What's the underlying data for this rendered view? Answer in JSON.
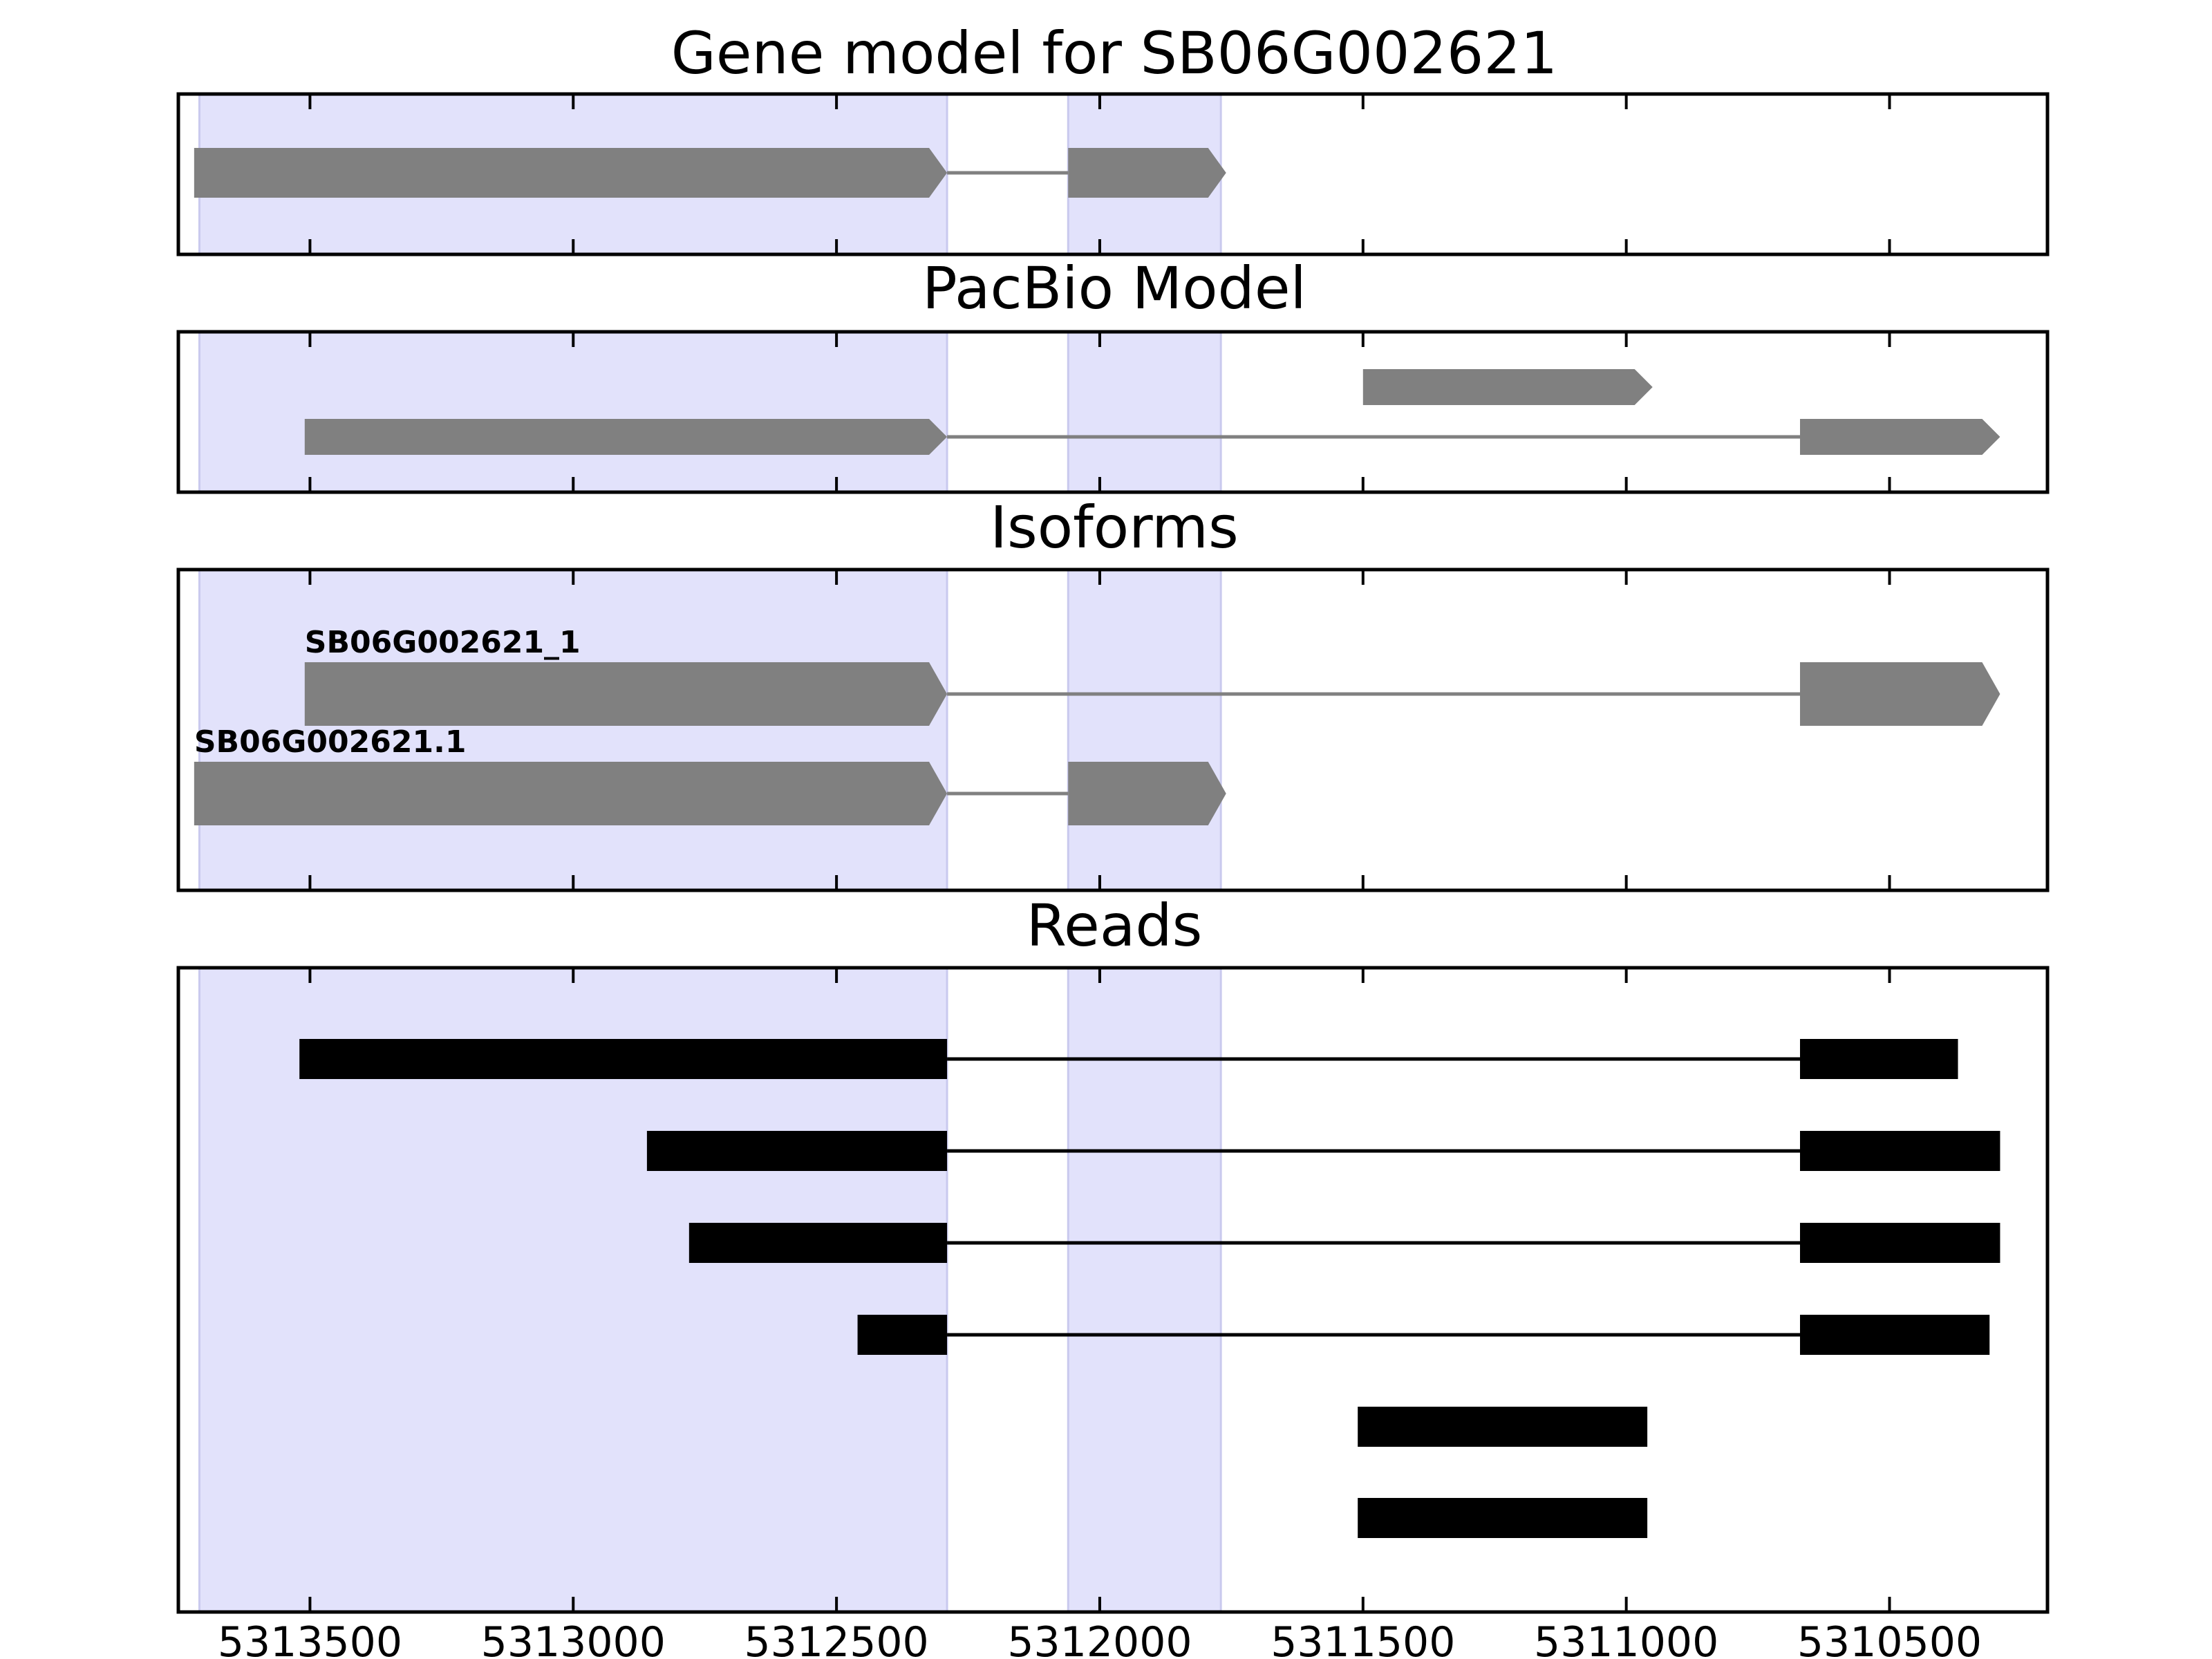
{
  "colors": {
    "highlight_fill": "#e2e2fb",
    "highlight_edge": "#c9c9ee",
    "model_feature": "#808080",
    "read_feature": "#000000",
    "frame": "#000000"
  },
  "x_axis": {
    "reversed": true,
    "range": [
      5313750,
      5310200
    ],
    "tick_values": [
      5313500,
      5313000,
      5312500,
      5312000,
      5311500,
      5311000,
      5310500
    ],
    "tick_labels": [
      "5313500",
      "5313000",
      "5312500",
      "5312000",
      "5311500",
      "5311000",
      "5310500"
    ]
  },
  "highlight_regions": [
    {
      "start": 5313710,
      "end": 5312290
    },
    {
      "start": 5312060,
      "end": 5311770
    }
  ],
  "chart_data": [
    {
      "type": "gene-model",
      "title": "Gene model for SB06G002621",
      "feature_color": "#808080",
      "transcripts": [
        {
          "label": "",
          "strand": "-",
          "exons": [
            [
              5313720,
              5312290
            ],
            [
              5312060,
              5311760
            ]
          ]
        }
      ]
    },
    {
      "type": "gene-model",
      "title": "PacBio Model",
      "feature_color": "#808080",
      "transcripts": [
        {
          "label": "",
          "strand": "-",
          "exons": [
            [
              5311500,
              5310950
            ]
          ]
        },
        {
          "label": "",
          "strand": "-",
          "exons": [
            [
              5313510,
              5312290
            ],
            [
              5310670,
              5310290
            ]
          ]
        }
      ]
    },
    {
      "type": "gene-model",
      "title": "Isoforms",
      "feature_color": "#808080",
      "transcripts": [
        {
          "label": "SB06G002621_1",
          "strand": "-",
          "exons": [
            [
              5313510,
              5312290
            ],
            [
              5310670,
              5310290
            ]
          ]
        },
        {
          "label": "SB06G002621.1",
          "strand": "-",
          "exons": [
            [
              5313720,
              5312290
            ],
            [
              5312060,
              5311760
            ]
          ]
        }
      ]
    },
    {
      "type": "reads",
      "title": "Reads",
      "feature_color": "#000000",
      "reads": [
        {
          "blocks": [
            [
              5313520,
              5312290
            ],
            [
              5310670,
              5310370
            ]
          ]
        },
        {
          "blocks": [
            [
              5312860,
              5312290
            ],
            [
              5310670,
              5310290
            ]
          ]
        },
        {
          "blocks": [
            [
              5312780,
              5312290
            ],
            [
              5310670,
              5310290
            ]
          ]
        },
        {
          "blocks": [
            [
              5312460,
              5312290
            ],
            [
              5310670,
              5310310
            ]
          ]
        },
        {
          "blocks": [
            [
              5311510,
              5310960
            ]
          ]
        },
        {
          "blocks": [
            [
              5311510,
              5310960
            ]
          ]
        }
      ]
    }
  ]
}
